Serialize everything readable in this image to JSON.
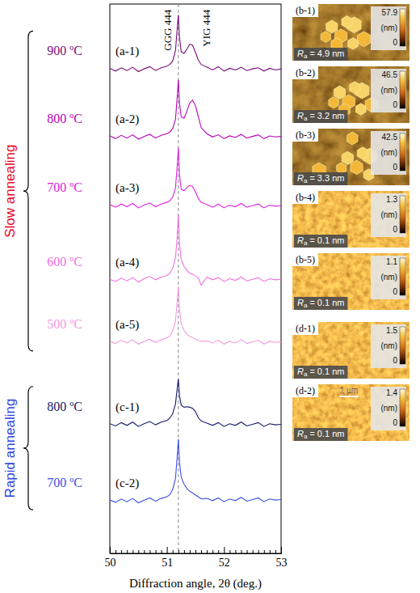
{
  "chart_data": {
    "type": "line",
    "xlabel": "Diffraction angle, 2θ (deg.)",
    "xlim": [
      50,
      53
    ],
    "ylim": [
      0,
      100
    ],
    "xticks": [
      50,
      51,
      52,
      53
    ],
    "xminorticks": [
      50.1,
      50.2,
      50.3,
      50.4,
      50.5,
      50.6,
      50.7,
      50.8,
      50.9,
      51.1,
      51.2,
      51.3,
      51.4,
      51.5,
      51.6,
      51.7,
      51.8,
      51.9,
      52.1,
      52.2,
      52.3,
      52.4,
      52.5,
      52.6,
      52.7,
      52.8,
      52.9
    ],
    "tick_labels": "x",
    "grid": false,
    "reference_line": {
      "x": 51.2,
      "line_style": "dashed",
      "color": "#888888"
    },
    "annotations": [
      {
        "text": "GGG 444",
        "x": 51.08,
        "y": 99
      },
      {
        "text": "YIG 444",
        "x": 51.75,
        "y": 99
      }
    ],
    "groups": [
      {
        "label": "Slow annealing",
        "color": "#e8001c",
        "series": [
          0,
          1,
          2,
          3,
          4
        ]
      },
      {
        "label": "Rapid annealing",
        "color": "#2a3fe0",
        "series": [
          5,
          6
        ]
      }
    ],
    "x": [
      50.0,
      50.1,
      50.2,
      50.3,
      50.4,
      50.5,
      50.6,
      50.7,
      50.8,
      50.9,
      51.0,
      51.05,
      51.1,
      51.15,
      51.18,
      51.2,
      51.22,
      51.25,
      51.3,
      51.35,
      51.4,
      51.45,
      51.5,
      51.55,
      51.6,
      51.7,
      51.8,
      51.9,
      52.0,
      52.1,
      52.2,
      52.3,
      52.4,
      52.5,
      52.6,
      52.7,
      52.8,
      52.9,
      53.0
    ],
    "series": [
      {
        "name": "(a-1)",
        "label": "900 ºC",
        "color": "#7a0a7a",
        "line_style": "solid",
        "values": [
          88.3,
          87.8,
          88.4,
          87.9,
          88.5,
          87.7,
          88.2,
          88.6,
          87.9,
          88.4,
          88.7,
          89.0,
          89.6,
          91.5,
          95.5,
          98.0,
          94.0,
          91.3,
          91.0,
          91.8,
          92.7,
          92.5,
          91.2,
          89.8,
          89.0,
          88.5,
          88.0,
          88.6,
          87.8,
          88.3,
          88.0,
          88.5,
          87.9,
          88.2,
          88.4,
          87.8,
          88.3,
          88.0,
          88.2
        ]
      },
      {
        "name": "(a-2)",
        "label": "800 ºC",
        "color": "#b800b8",
        "line_style": "solid",
        "values": [
          76.0,
          75.5,
          76.1,
          75.6,
          76.2,
          75.4,
          75.9,
          76.3,
          75.6,
          76.1,
          76.4,
          76.7,
          77.3,
          79.0,
          83.0,
          86.2,
          82.0,
          79.5,
          79.2,
          80.5,
          82.0,
          82.5,
          81.5,
          79.5,
          77.5,
          76.4,
          75.8,
          76.2,
          75.5,
          76.0,
          75.7,
          76.3,
          75.6,
          75.9,
          76.2,
          75.5,
          76.0,
          75.8,
          75.9
        ]
      },
      {
        "name": "(a-3)",
        "label": "700 ºC",
        "color": "#e020e0",
        "line_style": "solid",
        "values": [
          63.5,
          63.0,
          63.6,
          63.1,
          63.7,
          62.9,
          63.4,
          63.8,
          63.1,
          63.6,
          63.9,
          64.2,
          64.8,
          66.5,
          70.5,
          73.8,
          69.0,
          66.3,
          66.0,
          66.6,
          67.0,
          66.8,
          65.8,
          64.6,
          63.9,
          63.5,
          63.0,
          63.6,
          62.9,
          63.4,
          63.1,
          63.7,
          63.0,
          63.3,
          63.6,
          62.9,
          63.4,
          63.2,
          63.3
        ]
      },
      {
        "name": "(a-4)",
        "label": "600 ºC",
        "color": "#f070e0",
        "line_style": "solid",
        "values": [
          49.9,
          49.5,
          50.1,
          49.6,
          50.2,
          49.4,
          50.0,
          50.4,
          49.8,
          50.3,
          50.6,
          51.0,
          51.8,
          53.8,
          57.5,
          61.7,
          56.5,
          53.5,
          52.2,
          51.5,
          51.0,
          50.8,
          50.5,
          50.2,
          48.8,
          50.3,
          49.8,
          50.2,
          49.5,
          50.0,
          49.7,
          50.3,
          49.6,
          49.9,
          50.2,
          49.5,
          50.0,
          49.8,
          49.9
        ]
      },
      {
        "name": "(a-5)",
        "label": "500 ºC",
        "color": "#f29ae2",
        "line_style": "solid",
        "values": [
          38.6,
          38.2,
          38.8,
          38.3,
          38.9,
          38.1,
          38.6,
          39.0,
          38.4,
          38.9,
          39.2,
          39.6,
          40.4,
          42.3,
          45.8,
          48.6,
          44.5,
          41.8,
          40.6,
          39.9,
          39.5,
          39.3,
          39.0,
          38.8,
          38.6,
          38.7,
          38.3,
          38.8,
          38.1,
          38.6,
          38.3,
          38.9,
          38.2,
          38.5,
          38.8,
          38.1,
          38.6,
          38.4,
          38.5
        ]
      },
      {
        "name": "(c-1)",
        "label": "800 ºC",
        "color": "#16186a",
        "line_style": "solid",
        "values": [
          23.6,
          23.2,
          23.8,
          23.3,
          23.9,
          23.1,
          23.6,
          24.0,
          23.4,
          23.9,
          24.2,
          24.6,
          25.4,
          27.2,
          30.0,
          31.7,
          28.7,
          27.0,
          26.6,
          26.7,
          26.6,
          26.4,
          25.8,
          24.7,
          24.1,
          23.7,
          23.3,
          23.8,
          23.1,
          23.6,
          23.3,
          23.9,
          23.2,
          23.5,
          23.8,
          23.1,
          23.6,
          23.4,
          23.5
        ]
      },
      {
        "name": "(c-2)",
        "label": "700 ºC",
        "color": "#3a50e8",
        "line_style": "solid",
        "values": [
          9.7,
          9.3,
          9.9,
          9.4,
          10.0,
          9.2,
          9.7,
          10.1,
          9.5,
          10.0,
          10.3,
          10.7,
          11.6,
          13.6,
          17.6,
          20.8,
          16.6,
          13.9,
          12.6,
          11.8,
          11.3,
          11.0,
          10.6,
          10.3,
          9.9,
          10.0,
          9.6,
          10.1,
          9.4,
          9.9,
          9.6,
          10.2,
          9.5,
          9.8,
          10.1,
          9.4,
          9.9,
          9.7,
          9.8
        ]
      }
    ]
  },
  "afm_images": [
    {
      "label": "(b-1)",
      "colorbar_range": [
        0,
        57.9
      ],
      "colorbar_ticks": [
        0,
        57.9
      ],
      "colorbar_unit": "(nm)",
      "roughness": {
        "symbol": "R",
        "subscript": "a",
        "relation": "=",
        "value": 4.9,
        "unit": "nm"
      }
    },
    {
      "label": "(b-2)",
      "colorbar_range": [
        0,
        46.5
      ],
      "colorbar_ticks": [
        0,
        46.5
      ],
      "colorbar_unit": "(nm)",
      "roughness": {
        "symbol": "R",
        "subscript": "a",
        "relation": "=",
        "value": 3.2,
        "unit": "nm"
      }
    },
    {
      "label": "(b-3)",
      "colorbar_range": [
        0,
        42.5
      ],
      "colorbar_ticks": [
        0,
        42.5
      ],
      "colorbar_unit": "(nm)",
      "roughness": {
        "symbol": "R",
        "subscript": "a",
        "relation": "=",
        "value": 3.3,
        "unit": "nm"
      }
    },
    {
      "label": "(b-4)",
      "colorbar_range": [
        0,
        1.3
      ],
      "colorbar_ticks": [
        0,
        1.3
      ],
      "colorbar_unit": "(nm)",
      "roughness": {
        "symbol": "R",
        "subscript": "a",
        "relation": "=",
        "value": 0.1,
        "unit": "nm"
      }
    },
    {
      "label": "(b-5)",
      "colorbar_range": [
        0,
        1.1
      ],
      "colorbar_ticks": [
        0,
        1.1
      ],
      "colorbar_unit": "(nm)",
      "roughness": {
        "symbol": "R",
        "subscript": "a",
        "relation": "=",
        "value": 0.1,
        "unit": "nm"
      }
    },
    {
      "label": "(d-1)",
      "colorbar_range": [
        0,
        1.5
      ],
      "colorbar_ticks": [
        0,
        1.5
      ],
      "colorbar_unit": "(nm)",
      "roughness": {
        "symbol": "R",
        "subscript": "a",
        "relation": "=",
        "value": 0.1,
        "unit": "nm"
      }
    },
    {
      "label": "(d-2)",
      "colorbar_range": [
        0,
        1.4
      ],
      "colorbar_ticks": [
        0,
        1.4
      ],
      "colorbar_unit": "(nm)",
      "roughness": {
        "symbol": "R",
        "subscript": "a",
        "relation": "=",
        "value": 0.1,
        "unit": "nm"
      },
      "scale_bar": "1 µm"
    }
  ]
}
